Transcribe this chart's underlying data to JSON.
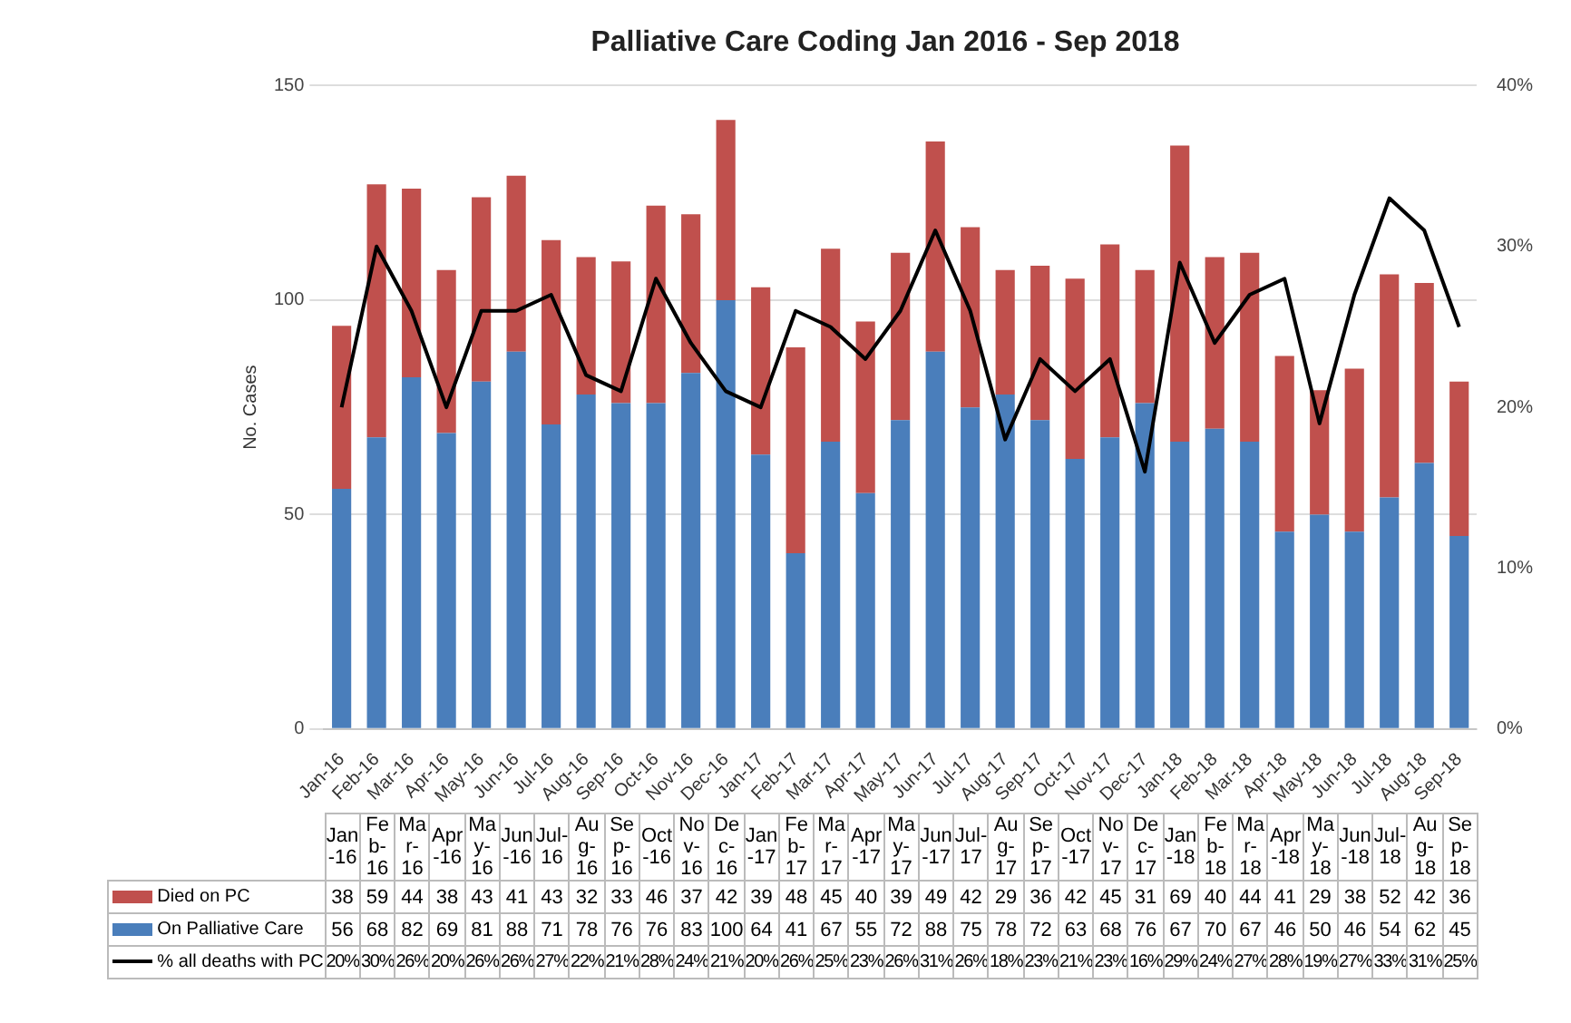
{
  "chart_data": {
    "type": "bar",
    "title": "Palliative Care Coding Jan 2016 - Sep 2018",
    "ylabel": "No. Cases",
    "categories": [
      "Jan-16",
      "Feb-16",
      "Mar-16",
      "Apr-16",
      "May-16",
      "Jun-16",
      "Jul-16",
      "Aug-16",
      "Sep-16",
      "Oct-16",
      "Nov-16",
      "Dec-16",
      "Jan-17",
      "Feb-17",
      "Mar-17",
      "Apr-17",
      "May-17",
      "Jun-17",
      "Jul-17",
      "Aug-17",
      "Sep-17",
      "Oct-17",
      "Nov-17",
      "Dec-17",
      "Jan-18",
      "Feb-18",
      "Mar-18",
      "Apr-18",
      "May-18",
      "Jun-18",
      "Jul-18",
      "Aug-18",
      "Sep-18"
    ],
    "series": [
      {
        "name": "On Palliative Care",
        "color": "#4a7ebb",
        "values": [
          56,
          68,
          82,
          69,
          81,
          88,
          71,
          78,
          76,
          76,
          83,
          100,
          64,
          41,
          67,
          55,
          72,
          88,
          75,
          78,
          72,
          63,
          68,
          76,
          67,
          70,
          67,
          46,
          50,
          46,
          54,
          62,
          45
        ]
      },
      {
        "name": "Died on PC",
        "color": "#c0504d",
        "values": [
          38,
          59,
          44,
          38,
          43,
          41,
          43,
          32,
          33,
          46,
          37,
          42,
          39,
          48,
          45,
          40,
          39,
          49,
          42,
          29,
          36,
          42,
          45,
          31,
          69,
          40,
          44,
          41,
          29,
          38,
          52,
          42,
          36
        ]
      },
      {
        "name": "% all deaths with PC",
        "type": "line",
        "axis": "y2",
        "color": "#000000",
        "values": [
          20,
          30,
          26,
          20,
          26,
          26,
          27,
          22,
          21,
          28,
          24,
          21,
          20,
          26,
          25,
          23,
          26,
          31,
          26,
          18,
          23,
          21,
          23,
          16,
          29,
          24,
          27,
          28,
          19,
          27,
          33,
          31,
          25
        ],
        "value_labels": [
          "20%",
          "30%",
          "26%",
          "20%",
          "26%",
          "26%",
          "27%",
          "22%",
          "21%",
          "28%",
          "24%",
          "21%",
          "20%",
          "26%",
          "25%",
          "23%",
          "26%",
          "31%",
          "26%",
          "18%",
          "23%",
          "21%",
          "23%",
          "16%",
          "29%",
          "24%",
          "27%",
          "28%",
          "19%",
          "27%",
          "33%",
          "31%",
          "25%"
        ]
      }
    ],
    "stacked": true,
    "ylim": [
      0,
      150
    ],
    "yticks": [
      0,
      50,
      100,
      150
    ],
    "y2lim": [
      0,
      40
    ],
    "y2ticks": [
      {
        "value": 0,
        "label": "0%"
      },
      {
        "value": 10,
        "label": "10%"
      },
      {
        "value": 20,
        "label": "20%"
      },
      {
        "value": 30,
        "label": "30%"
      },
      {
        "value": 40,
        "label": "40%"
      }
    ],
    "grid": "y",
    "legend": "bottom",
    "data_labels": true
  }
}
